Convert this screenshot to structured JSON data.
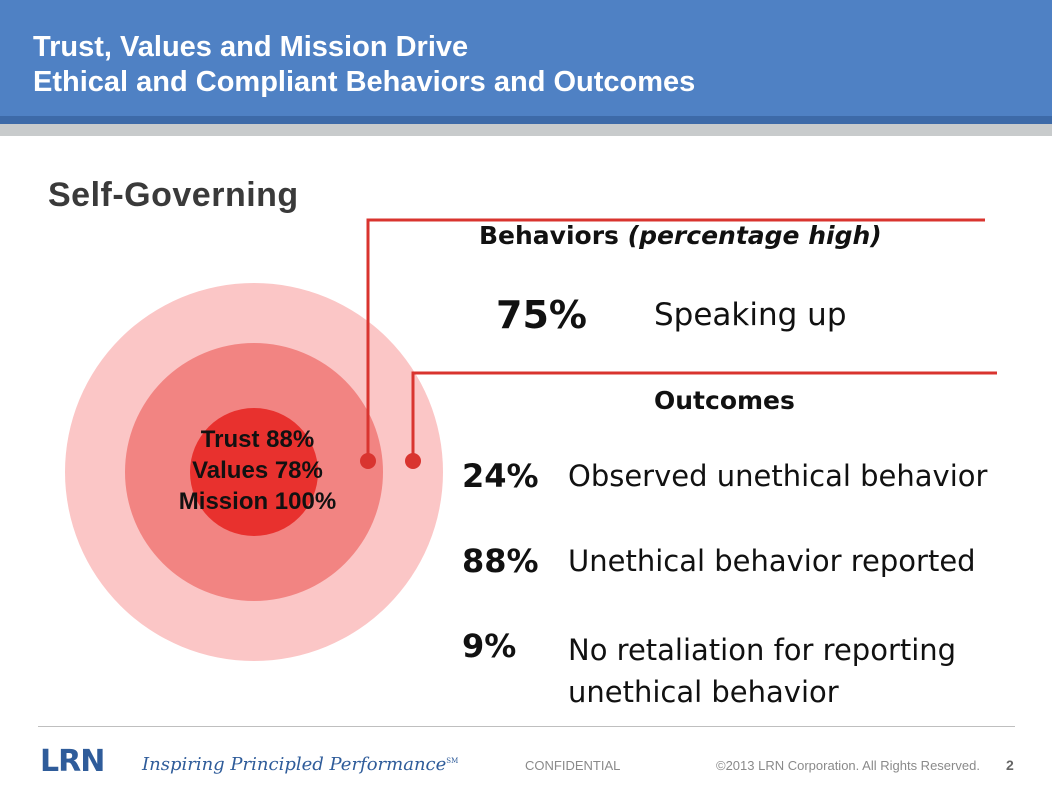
{
  "header": {
    "title_line1": "Trust, Values and Mission Drive",
    "title_line2": "Ethical and Compliant Behaviors and Outcomes"
  },
  "section_title": "Self-Governing",
  "core": {
    "trust": "Trust 88%",
    "values": "Values 78%",
    "mission": "Mission 100%"
  },
  "behaviors": {
    "header_bold": "Behaviors",
    "header_italic": "(percentage high)",
    "items": [
      {
        "pct": "75%",
        "label": "Speaking up"
      }
    ]
  },
  "outcomes": {
    "header": "Outcomes",
    "items": [
      {
        "pct": "24%",
        "label": "Observed unethical behavior"
      },
      {
        "pct": "88%",
        "label": "Unethical behavior reported"
      },
      {
        "pct": "9%",
        "label_line1": "No retaliation for reporting",
        "label_line2": "unethical behavior"
      }
    ]
  },
  "footer": {
    "logo": "LRN",
    "tagline": "Inspiring Principled Performance",
    "tagline_mark": "SM",
    "confidential": "CONFIDENTIAL",
    "copyright": "©2013 LRN Corporation. All Rights Reserved.",
    "page_number": "2"
  },
  "colors": {
    "header_blue": "#4f81c4",
    "connector_red": "#d9342f",
    "ring_outer": "#fbc6c6",
    "ring_mid": "#f28482",
    "ring_inner": "#e8312e",
    "logo_blue": "#2f5c9a"
  }
}
